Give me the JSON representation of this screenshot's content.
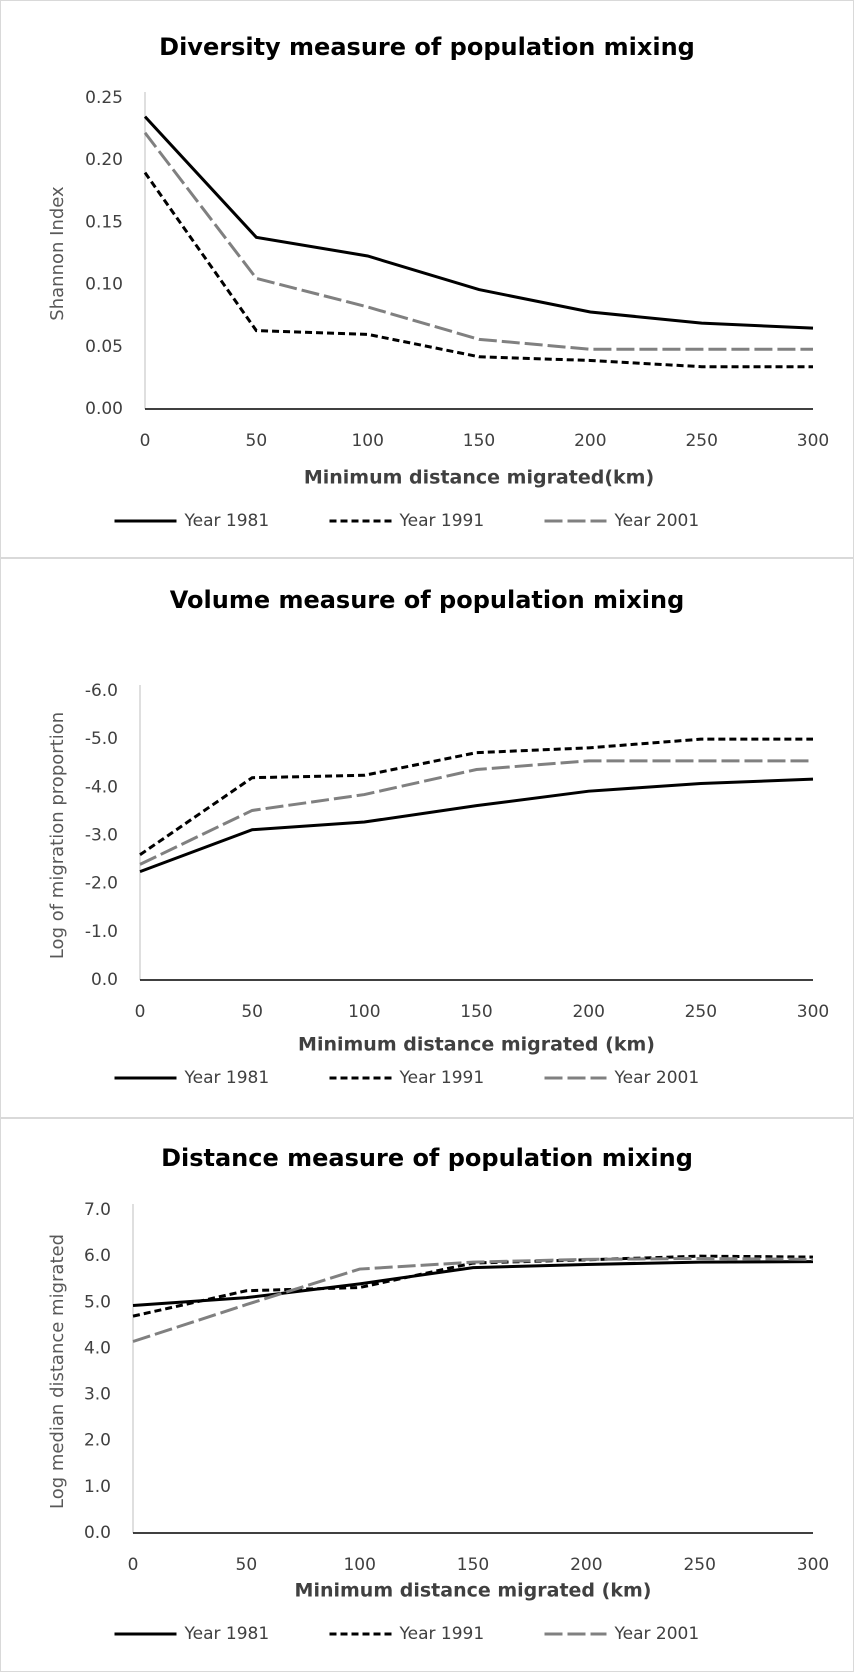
{
  "chart_data": [
    {
      "type": "line",
      "title": "Diversity measure of population mixing",
      "x_label": "Minimum distance migrated(km)",
      "y_label": "Shannon Index",
      "x": [
        0,
        50,
        100,
        150,
        200,
        250,
        300
      ],
      "xlim": [
        0,
        300
      ],
      "xticks": [
        0,
        50,
        100,
        150,
        200,
        250,
        300
      ],
      "ylim": [
        0,
        0.25
      ],
      "yticks": [
        {
          "value": 0,
          "label": "0.00"
        },
        {
          "value": 0.05,
          "label": "0.05"
        },
        {
          "value": 0.1,
          "label": "0.10"
        },
        {
          "value": 0.15,
          "label": "0.15"
        },
        {
          "value": 0.2,
          "label": "0.20"
        },
        {
          "value": 0.25,
          "label": "0.25"
        }
      ],
      "grid": false,
      "legend": "bottom",
      "series": [
        {
          "name": "Year 1981",
          "color": "#000000",
          "dash": "solid",
          "values": [
            0.235,
            0.138,
            0.123,
            0.096,
            0.078,
            0.069,
            0.065
          ]
        },
        {
          "name": "Year 1991",
          "color": "#000000",
          "dash": "dashed",
          "values": [
            0.19,
            0.063,
            0.06,
            0.042,
            0.039,
            0.034,
            0.034
          ]
        },
        {
          "name": "Year 2001",
          "color": "#808080",
          "dash": "long-dash",
          "values": [
            0.222,
            0.105,
            0.082,
            0.056,
            0.048,
            0.048,
            0.048
          ]
        }
      ]
    },
    {
      "type": "line",
      "title": "Volume measure of population mixing",
      "x_label": "Minimum distance migrated (km)",
      "y_label": "Log of migration proportion",
      "x": [
        0,
        50,
        100,
        150,
        200,
        250,
        300
      ],
      "xlim": [
        0,
        300
      ],
      "xticks": [
        0,
        50,
        100,
        150,
        200,
        250,
        300
      ],
      "ylim": [
        0,
        -6
      ],
      "yticks": [
        {
          "value": 0,
          "label": "0.0"
        },
        {
          "value": -1,
          "label": "-1.0"
        },
        {
          "value": -2,
          "label": "-2.0"
        },
        {
          "value": -3,
          "label": "-3.0"
        },
        {
          "value": -4,
          "label": "-4.0"
        },
        {
          "value": -5,
          "label": "-5.0"
        },
        {
          "value": -6,
          "label": "-6.0"
        }
      ],
      "grid": false,
      "legend": "bottom",
      "series": [
        {
          "name": "Year 1981",
          "color": "#000000",
          "dash": "solid",
          "values": [
            -2.25,
            -3.12,
            -3.28,
            -3.62,
            -3.92,
            -4.08,
            -4.17
          ]
        },
        {
          "name": "Year 1991",
          "color": "#000000",
          "dash": "dashed",
          "values": [
            -2.6,
            -4.2,
            -4.25,
            -4.72,
            -4.82,
            -5.0,
            -5.0
          ]
        },
        {
          "name": "Year 2001",
          "color": "#808080",
          "dash": "long-dash",
          "values": [
            -2.4,
            -3.52,
            -3.85,
            -4.37,
            -4.55,
            -4.55,
            -4.55
          ]
        }
      ]
    },
    {
      "type": "line",
      "title": "Distance measure of population mixing",
      "x_label": "Minimum distance migrated (km)",
      "y_label": "Log median distance migrated",
      "x": [
        0,
        50,
        100,
        150,
        200,
        250,
        300
      ],
      "xlim": [
        0,
        300
      ],
      "xticks": [
        0,
        50,
        100,
        150,
        200,
        250,
        300
      ],
      "ylim": [
        0,
        7
      ],
      "yticks": [
        {
          "value": 0,
          "label": "0.0"
        },
        {
          "value": 1,
          "label": "1.0"
        },
        {
          "value": 2,
          "label": "2.0"
        },
        {
          "value": 3,
          "label": "3.0"
        },
        {
          "value": 4,
          "label": "4.0"
        },
        {
          "value": 5,
          "label": "5.0"
        },
        {
          "value": 6,
          "label": "6.0"
        },
        {
          "value": 7,
          "label": "7.0"
        }
      ],
      "grid": false,
      "legend": "bottom",
      "series": [
        {
          "name": "Year 1981",
          "color": "#000000",
          "dash": "solid",
          "values": [
            4.93,
            5.1,
            5.4,
            5.75,
            5.82,
            5.87,
            5.88
          ]
        },
        {
          "name": "Year 1991",
          "color": "#000000",
          "dash": "dashed",
          "values": [
            4.7,
            5.25,
            5.32,
            5.85,
            5.92,
            6.0,
            5.98
          ]
        },
        {
          "name": "Year 2001",
          "color": "#808080",
          "dash": "long-dash",
          "values": [
            4.15,
            4.95,
            5.72,
            5.87,
            5.93,
            5.95,
            5.93
          ]
        }
      ]
    }
  ]
}
